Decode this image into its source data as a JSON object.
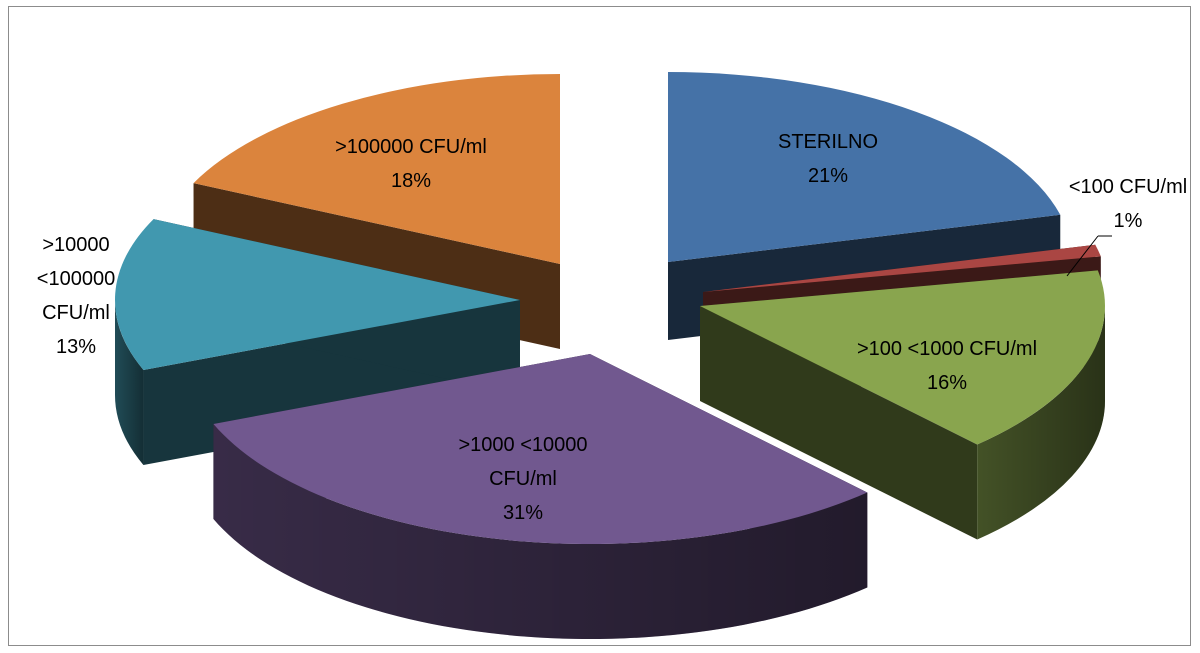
{
  "chart_data": {
    "type": "pie",
    "title": "",
    "exploded": true,
    "three_d": true,
    "slices": [
      {
        "label": "STERILNO",
        "percent_label": "21%",
        "value": 21,
        "color": "#4572A7"
      },
      {
        "label": "<100 CFU/ml",
        "percent_label": "1%",
        "value": 1,
        "color": "#AA4643"
      },
      {
        "label": ">100 <1000 CFU/ml",
        "percent_label": "16%",
        "value": 16,
        "color": "#89A54E"
      },
      {
        "label": ">1000 <10000 CFU/ml",
        "percent_label": "31%",
        "value": 31,
        "color": "#71588F"
      },
      {
        "label": ">10000 <100000 CFU/ml",
        "percent_label": "13%",
        "value": 13,
        "color": "#4198AF"
      },
      {
        "label": ">100000 CFU/ml",
        "percent_label": "18%",
        "value": 18,
        "color": "#DB843D"
      }
    ],
    "labels_display": [
      [
        "STERILNO",
        "21%"
      ],
      [
        "<100 CFU/ml",
        "1%"
      ],
      [
        ">100 <1000 CFU/ml",
        "16%"
      ],
      [
        ">1000 <10000",
        "CFU/ml",
        "31%"
      ],
      [
        ">10000",
        "<100000",
        "CFU/ml",
        "13%"
      ],
      [
        ">100000 CFU/ml",
        "18%"
      ]
    ]
  }
}
